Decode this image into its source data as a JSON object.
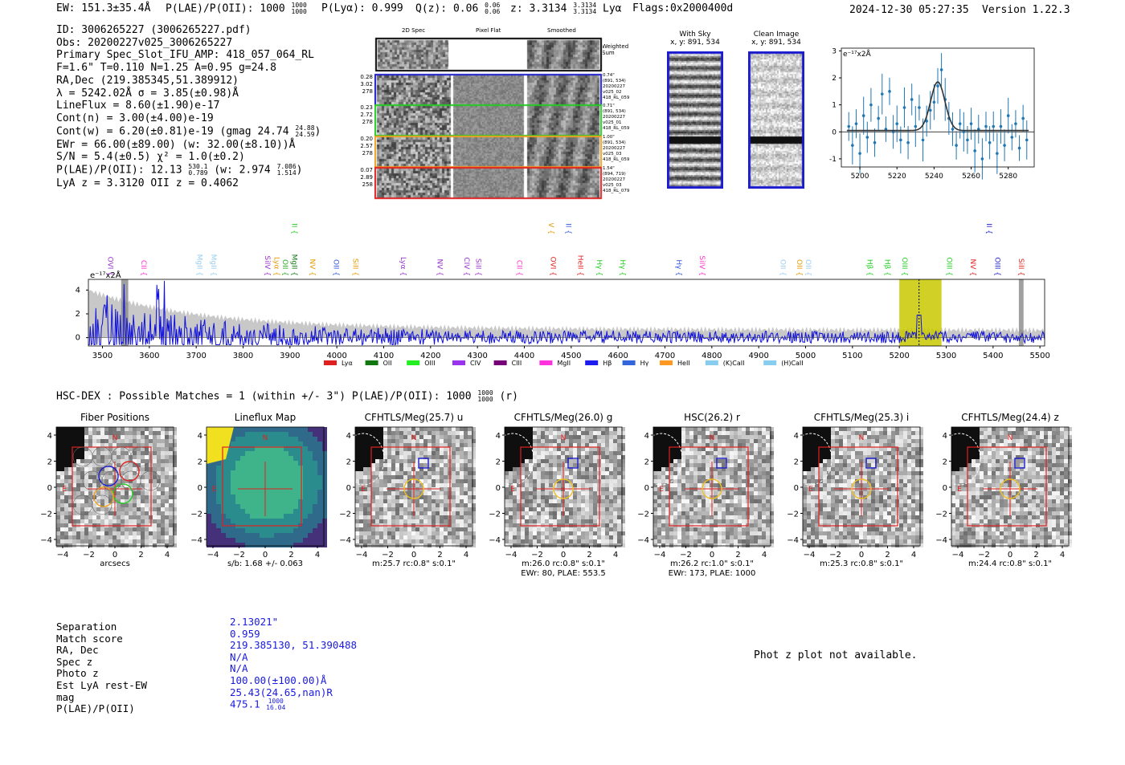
{
  "header": {
    "ew": "EW: 151.3±35.4Å",
    "plae": "P(LAE)/P(OII): 1000",
    "plae_hi": "1000",
    "plae_lo": "1000",
    "plya": "P(Lyα): 0.999",
    "qz": "Q(z): 0.06",
    "qz_hi": "0.06",
    "qz_lo": "0.06",
    "z": "z: 3.3134",
    "z_hi": "3.3134",
    "z_lo": "3.3134",
    "line": "Lyα",
    "flags": "Flags:0x2000400d",
    "datetime": "2024-12-30 05:27:35",
    "version": "Version 1.22.3"
  },
  "info": {
    "id": "ID: 3006265227 (3006265227.pdf)",
    "obs": "Obs: 20200227v025_3006265227",
    "primary": "Primary Spec_Slot_IFU_AMP: 418_057_064_RL",
    "fiber": "F=1.6\"  T=0.110  N=1.25  A=0.95  g=24.8",
    "radec": "RA,Dec (219.385345,51.389912)",
    "lambda": "λ = 5242.02Å  σ = 3.85(±0.98)Å",
    "lineflux": "LineFlux = 8.60(±1.90)e-17",
    "contn": "Cont(n) = 3.00(±4.00)e-19",
    "contw": "Cont(w) = 6.20(±0.81)e-19 (gmag 24.74",
    "gmag_hi": "24.88",
    "gmag_lo": "24.59",
    "ewr": "EWr = 66.00(±89.00) (w: 32.00(±8.10))Å",
    "sn": "S/N = 5.4(±0.5)  χ² = 1.0(±0.2)",
    "plae": "P(LAE)/P(OII): 12.13",
    "plae_hi": "530.1",
    "plae_lo": "0.789",
    "plae_w": "(w: 2.974",
    "plae_w_hi": "7.086",
    "plae_w_lo": "1.514",
    "z": "LyA z = 3.3120   OII z = 0.4062"
  },
  "spec2d": {
    "col_titles": [
      "2D Spec",
      "Pixel Flat",
      "Smoothed"
    ],
    "weighted_label": "Weighted Sum",
    "rows": [
      {
        "left": [
          "0.28",
          "3.02",
          "278"
        ],
        "right": [
          "0.74\"",
          "(891, 534)",
          "20200227",
          "v025_02",
          "418_RL_059"
        ],
        "color": "#1c1ccf"
      },
      {
        "left": [
          "0.23",
          "2.72",
          "278"
        ],
        "right": [
          "0.71\"",
          "(891, 534)",
          "20200227",
          "v025_01",
          "418_RL_059"
        ],
        "color": "#22cc22"
      },
      {
        "left": [
          "0.20",
          "2.57",
          "278"
        ],
        "right": [
          "1.00\"",
          "(891, 534)",
          "20200227",
          "v025_03",
          "418_RL_059"
        ],
        "color": "#f0a020"
      },
      {
        "left": [
          "0.07",
          "2.89",
          "258"
        ],
        "right": [
          "1.54\"",
          "(894, 719)",
          "20200227",
          "v025_03",
          "418_RL_079"
        ],
        "color": "#e02020"
      }
    ]
  },
  "sky": {
    "with_sky": "With Sky",
    "with_sky_xy": "x, y: 891, 534",
    "clean": "Clean Image",
    "clean_xy": "x, y: 891, 534"
  },
  "zoom_chart": {
    "type": "scatter",
    "unit_label": "e⁻¹⁷x2Å",
    "xlim": [
      5190,
      5294
    ],
    "ylim": [
      -1.3,
      3.1
    ],
    "xticks": [
      "5200",
      "5220",
      "5240",
      "5260",
      "5280"
    ],
    "yticks": [
      "-1",
      "0",
      "1",
      "2",
      "3"
    ],
    "x": [
      5194,
      5196,
      5198,
      5200,
      5202,
      5204,
      5206,
      5208,
      5210,
      5212,
      5214,
      5216,
      5218,
      5220,
      5222,
      5224,
      5226,
      5228,
      5230,
      5232,
      5234,
      5236,
      5238,
      5240,
      5242,
      5244,
      5246,
      5248,
      5250,
      5252,
      5254,
      5256,
      5258,
      5260,
      5262,
      5264,
      5266,
      5268,
      5270,
      5272,
      5274,
      5276,
      5278,
      5280,
      5282,
      5284,
      5286,
      5288,
      5290
    ],
    "y": [
      0.2,
      -0.5,
      0.3,
      -0.8,
      0.6,
      -0.2,
      1.0,
      -0.4,
      0.5,
      1.4,
      0.1,
      1.5,
      0.0,
      0.3,
      -0.3,
      0.9,
      -0.4,
      1.2,
      0.2,
      0.9,
      -0.3,
      0.4,
      0.8,
      1.1,
      1.7,
      2.3,
      1.2,
      0.5,
      0.1,
      -0.5,
      0.3,
      0.0,
      -0.3,
      0.3,
      -0.7,
      0.1,
      -1.0,
      0.2,
      -0.4,
      0.2,
      -0.8,
      0.2,
      -0.5,
      0.6,
      -0.2,
      0.3,
      -0.6,
      0.5,
      -0.3
    ],
    "fit_peak": 1.8,
    "fit_center": 5242,
    "fit_sigma": 3.85
  },
  "full_spectrum": {
    "type": "line",
    "unit_label": "e⁻¹⁷x2Å",
    "xlim": [
      3470,
      5510
    ],
    "ylim": [
      -0.7,
      4.9
    ],
    "xticks": [
      "3500",
      "3600",
      "3700",
      "3800",
      "3900",
      "4000",
      "4100",
      "4200",
      "4300",
      "4400",
      "4500",
      "4600",
      "4700",
      "4800",
      "4900",
      "5000",
      "5100",
      "5200",
      "5300",
      "5400",
      "5500"
    ],
    "yticks": [
      "0",
      "2",
      "4"
    ],
    "highlight_range": [
      5200,
      5290
    ],
    "line_marker": 5242,
    "line_labels": [
      {
        "label": "OVI",
        "x": 3505,
        "color": "#9933cc"
      },
      {
        "label": "CII",
        "x": 3576,
        "color": "#ff33cc"
      },
      {
        "label": "MgII",
        "x": 3695,
        "color": "#99ccee"
      },
      {
        "label": "MgII",
        "x": 3725,
        "color": "#99ccee"
      },
      {
        "label": "SiIV",
        "x": 3840,
        "color": "#9933cc"
      },
      {
        "label": "Lyα",
        "x": 3860,
        "color": "#e69900"
      },
      {
        "label": "OII",
        "x": 3878,
        "color": "#22aa22"
      },
      {
        "label": "MgII",
        "x": 3898,
        "color": "#117711"
      },
      {
        "label": "NV",
        "x": 3936,
        "color": "#e69900"
      },
      {
        "label": "OII",
        "x": 3987,
        "color": "#3355dd"
      },
      {
        "label": "SiII",
        "x": 4028,
        "color": "#e69900"
      },
      {
        "label": "Lyα",
        "x": 4130,
        "color": "#9933cc"
      },
      {
        "label": "NV",
        "x": 4208,
        "color": "#9933cc"
      },
      {
        "label": "CIV",
        "x": 4265,
        "color": "#9933cc"
      },
      {
        "label": "SiII",
        "x": 4290,
        "color": "#9933cc"
      },
      {
        "label": "CII",
        "x": 4378,
        "color": "#ff33cc"
      },
      {
        "label": "OVI",
        "x": 4450,
        "color": "#e02020"
      },
      {
        "label": "HeII",
        "x": 4508,
        "color": "#e02020"
      },
      {
        "label": "Hγ",
        "x": 4548,
        "color": "#22cc22"
      },
      {
        "label": "Hγ",
        "x": 4598,
        "color": "#22cc22"
      },
      {
        "label": "Hγ",
        "x": 4718,
        "color": "#3355dd"
      },
      {
        "label": "SiIV",
        "x": 4768,
        "color": "#ff33cc"
      },
      {
        "label": "OII",
        "x": 4940,
        "color": "#99ccee"
      },
      {
        "label": "OII",
        "x": 4975,
        "color": "#e69900"
      },
      {
        "label": "OII",
        "x": 4994,
        "color": "#99ccee"
      },
      {
        "label": "Hβ",
        "x": 5125,
        "color": "#22cc22"
      },
      {
        "label": "Hβ",
        "x": 5163,
        "color": "#22cc22"
      },
      {
        "label": "OIII",
        "x": 5200,
        "color": "#22cc22"
      },
      {
        "label": "OIII",
        "x": 5295,
        "color": "#22cc22"
      },
      {
        "label": "NV",
        "x": 5345,
        "color": "#e02020"
      },
      {
        "label": "OIII",
        "x": 5398,
        "color": "#1c1ccf"
      },
      {
        "label": "SiII",
        "x": 5448,
        "color": "#e02020"
      }
    ],
    "upper_labels": [
      {
        "label": "OII",
        "x": 3898,
        "color": "#22cc22"
      },
      {
        "label": "SiIV",
        "x": 4445,
        "color": "#e69900"
      },
      {
        "label": "OII",
        "x": 4482,
        "color": "#3355dd"
      },
      {
        "label": "OIII",
        "x": 5380,
        "color": "#1c1ccf"
      }
    ],
    "legend": [
      {
        "label": "Lyα",
        "color": "#e02020"
      },
      {
        "label": "OII",
        "color": "#117711"
      },
      {
        "label": "OIII",
        "color": "#22ee22"
      },
      {
        "label": "CIV",
        "color": "#9933ee"
      },
      {
        "label": "CIII",
        "color": "#770077"
      },
      {
        "label": "MgII",
        "color": "#ff33dd"
      },
      {
        "label": "Hβ",
        "color": "#1c1cee"
      },
      {
        "label": "Hγ",
        "color": "#3366dd"
      },
      {
        "label": "HeII",
        "color": "#ff9922"
      },
      {
        "label": "(K)CaII",
        "color": "#88ccee"
      },
      {
        "label": "(H)CaII",
        "color": "#88ccee"
      }
    ]
  },
  "hsc": {
    "title": "HSC-DEX : Possible Matches = 1 (within +/- 3\")  P(LAE)/P(OII): 1000",
    "plae_hi": "1000",
    "plae_lo": "1000",
    "suffix": "(r)"
  },
  "cutouts": [
    {
      "title": "Fiber Positions",
      "caption": [
        "arcsecs"
      ],
      "kind": "fiber"
    },
    {
      "title": "Lineflux Map",
      "caption": [
        "s/b: 1.68 +/- 0.063"
      ],
      "kind": "lineflux"
    },
    {
      "title": "CFHTLS/Meg(25.7) u",
      "caption": [
        "m:25.7 rc:0.8\"  s:0.1\""
      ],
      "kind": "img"
    },
    {
      "title": "CFHTLS/Meg(26.0) g",
      "caption": [
        "m:26.0 rc:0.8\"  s:0.1\"",
        "EWr: 80, PLAE: 553.5"
      ],
      "kind": "img"
    },
    {
      "title": "HSC(26.2) r",
      "caption": [
        "m:26.2 rc:1.0\"  s:0.1\"",
        "EWr: 173, PLAE: 1000"
      ],
      "kind": "img"
    },
    {
      "title": "CFHTLS/Meg(25.3) i",
      "caption": [
        "m:25.3 rc:0.8\"  s:0.1\""
      ],
      "kind": "img"
    },
    {
      "title": "CFHTLS/Meg(24.4) z",
      "caption": [
        "m:24.4 rc:0.8\"  s:0.1\""
      ],
      "kind": "img"
    }
  ],
  "cutout_ticks": [
    "4",
    "2",
    "0",
    "−2",
    "−4"
  ],
  "cutout_xticks": [
    "−4",
    "−2",
    "0",
    "2",
    "4"
  ],
  "compass": {
    "n": "N",
    "e": "E"
  },
  "match": {
    "labels": [
      "Separation",
      "Match score",
      "RA, Dec",
      "Spec z",
      "Photo z",
      "Est LyA rest-EW",
      "mag",
      "P(LAE)/P(OII)"
    ],
    "values": [
      "2.13021\"",
      "0.959",
      "219.385130, 51.390488",
      "N/A",
      "N/A",
      "100.00(±100.00)Å",
      "25.43(24.65,nan)R",
      "475.1"
    ],
    "plae_hi": "1000",
    "plae_lo": "16.04",
    "photz_note": "Phot z plot not available."
  }
}
